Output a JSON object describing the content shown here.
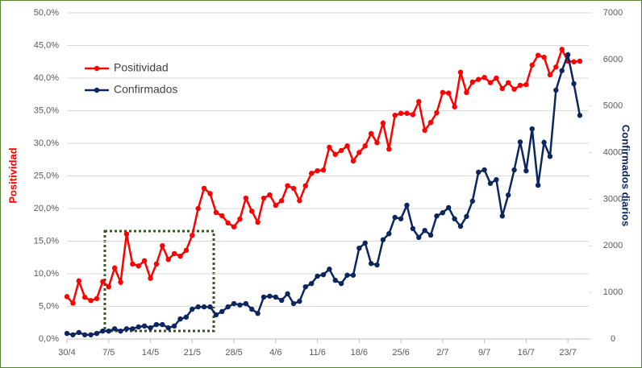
{
  "chart_data": {
    "type": "line",
    "categories": [
      "30/4",
      null,
      null,
      null,
      null,
      null,
      null,
      "7/5",
      null,
      null,
      null,
      null,
      null,
      null,
      "14/5",
      null,
      null,
      null,
      null,
      null,
      null,
      "21/5",
      null,
      null,
      null,
      null,
      null,
      null,
      "28/5",
      null,
      null,
      null,
      null,
      null,
      null,
      "4/6",
      null,
      null,
      null,
      null,
      null,
      null,
      "11/6",
      null,
      null,
      null,
      null,
      null,
      null,
      "18/6",
      null,
      null,
      null,
      null,
      null,
      null,
      "25/6",
      null,
      null,
      null,
      null,
      null,
      null,
      "2/7",
      null,
      null,
      null,
      null,
      null,
      null,
      "9/7",
      null,
      null,
      null,
      null,
      null,
      null,
      "16/7",
      null,
      null,
      null,
      null,
      null,
      null,
      "23/7",
      null,
      null
    ],
    "series": [
      {
        "name": "Positividad",
        "color": "#ff0000",
        "values": [
          6.5,
          5.5,
          8.9,
          6.4,
          5.9,
          6.2,
          8.8,
          8.0,
          10.9,
          8.7,
          16.1,
          11.5,
          11.2,
          12.0,
          9.3,
          11.5,
          14.3,
          12.2,
          13.1,
          12.7,
          13.6,
          15.9,
          20.0,
          23.1,
          22.3,
          19.4,
          18.9,
          17.8,
          17.2,
          18.4,
          21.6,
          19.6,
          17.9,
          21.6,
          22.1,
          20.5,
          21.2,
          23.5,
          23.1,
          21.2,
          23.5,
          25.4,
          25.8,
          25.9,
          29.4,
          28.3,
          28.9,
          29.6,
          27.3,
          28.6,
          29.6,
          31.5,
          30.1,
          33.1,
          29.1,
          34.3,
          34.6,
          34.6,
          34.4,
          36.4,
          32.0,
          33.2,
          34.7,
          37.8,
          37.7,
          35.6,
          40.9,
          37.8,
          39.4,
          39.8,
          40.1,
          39.3,
          40.0,
          38.4,
          39.3,
          38.3,
          38.9,
          39.0,
          42.0,
          43.5,
          43.2,
          40.5,
          41.7,
          44.4,
          42.6,
          42.5,
          42.6
        ]
      },
      {
        "name": "Confirmados",
        "color": "#0c2660",
        "axis": "y2",
        "values": [
          120,
          90,
          140,
          90,
          90,
          120,
          170,
          170,
          220,
          170,
          220,
          220,
          260,
          280,
          240,
          310,
          310,
          240,
          280,
          430,
          470,
          640,
          690,
          690,
          690,
          520,
          590,
          690,
          760,
          730,
          760,
          640,
          550,
          900,
          920,
          900,
          830,
          970,
          760,
          810,
          1120,
          1190,
          1350,
          1380,
          1500,
          1260,
          1190,
          1370,
          1370,
          1950,
          2060,
          1620,
          1590,
          2130,
          2260,
          2610,
          2580,
          2870,
          2370,
          2180,
          2330,
          2230,
          2640,
          2710,
          2820,
          2580,
          2420,
          2630,
          2960,
          3580,
          3630,
          3340,
          3420,
          2640,
          3090,
          3630,
          4230,
          3610,
          4510,
          3300,
          4220,
          3920,
          5340,
          5760,
          6100,
          5480,
          4800
        ]
      }
    ],
    "ylabel": "Positividad",
    "y2label": "Confirmados diarios",
    "ylim": [
      0,
      50
    ],
    "yticks": [
      {
        "value": 0,
        "label": "0,0%"
      },
      {
        "value": 5,
        "label": "5,0%"
      },
      {
        "value": 10,
        "label": "10,0%"
      },
      {
        "value": 15,
        "label": "15,0%"
      },
      {
        "value": 20,
        "label": "20,0%"
      },
      {
        "value": 25,
        "label": "25,0%"
      },
      {
        "value": 30,
        "label": "30,0%"
      },
      {
        "value": 35,
        "label": "35,0%"
      },
      {
        "value": 40,
        "label": "40,0%"
      },
      {
        "value": 45,
        "label": "45,0%"
      },
      {
        "value": 50,
        "label": "50,0%"
      }
    ],
    "y2lim": [
      0,
      7000
    ],
    "y2ticks": [
      0,
      1000,
      2000,
      3000,
      4000,
      5000,
      6000,
      7000
    ],
    "grid": true,
    "legend": "upper left"
  }
}
